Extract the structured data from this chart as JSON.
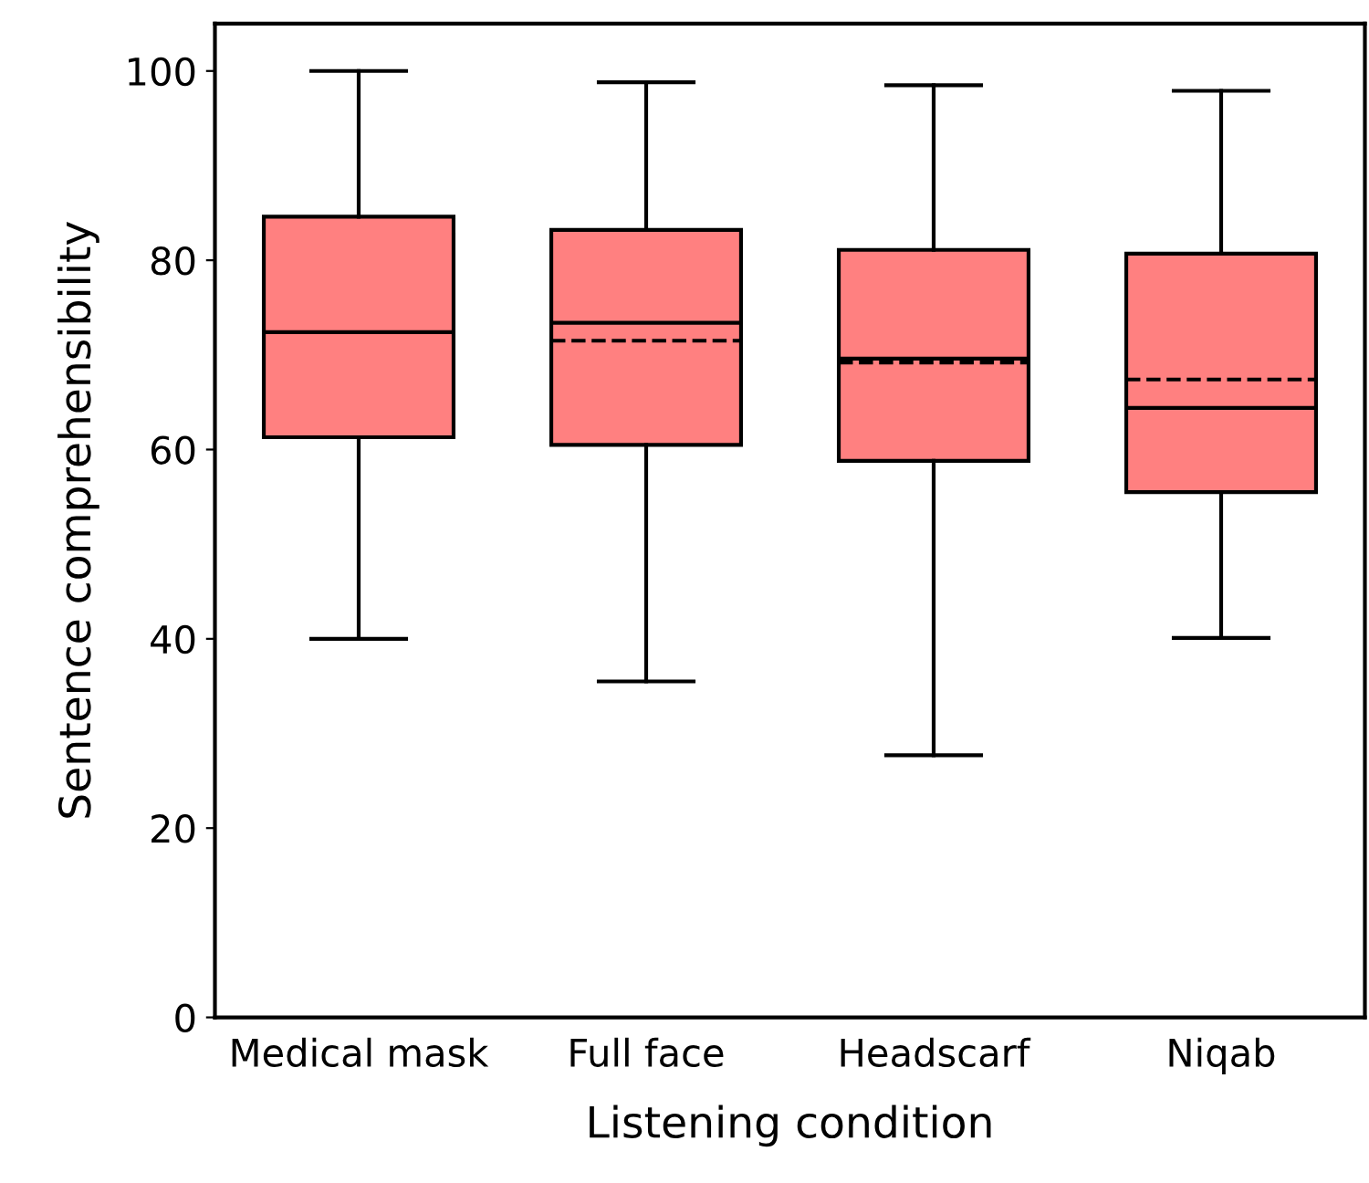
{
  "chart_data": {
    "type": "box",
    "xlabel": "Listening condition",
    "ylabel": "Sentence comprehensibility",
    "categories": [
      "Medical mask",
      "Full face",
      "Headscarf",
      "Niqab"
    ],
    "boxes": [
      {
        "low": 40,
        "q1": 61.3,
        "median": 72.4,
        "q3": 84.6,
        "high": 100
      },
      {
        "low": 35.5,
        "q1": 60.5,
        "median": 73.4,
        "q3": 83.2,
        "high": 98.8,
        "mean": 71.5
      },
      {
        "low": 27.7,
        "q1": 58.8,
        "median": 69.6,
        "q3": 81.1,
        "high": 98.5,
        "mean": 69.2
      },
      {
        "low": 40.1,
        "q1": 55.5,
        "median": 64.4,
        "q3": 80.7,
        "high": 97.9,
        "mean": 67.4
      }
    ],
    "color": "#ff8080",
    "ylim": [
      0,
      105
    ],
    "yticks": [
      0,
      20,
      40,
      60,
      80,
      100
    ],
    "grid": false,
    "legend": false
  }
}
